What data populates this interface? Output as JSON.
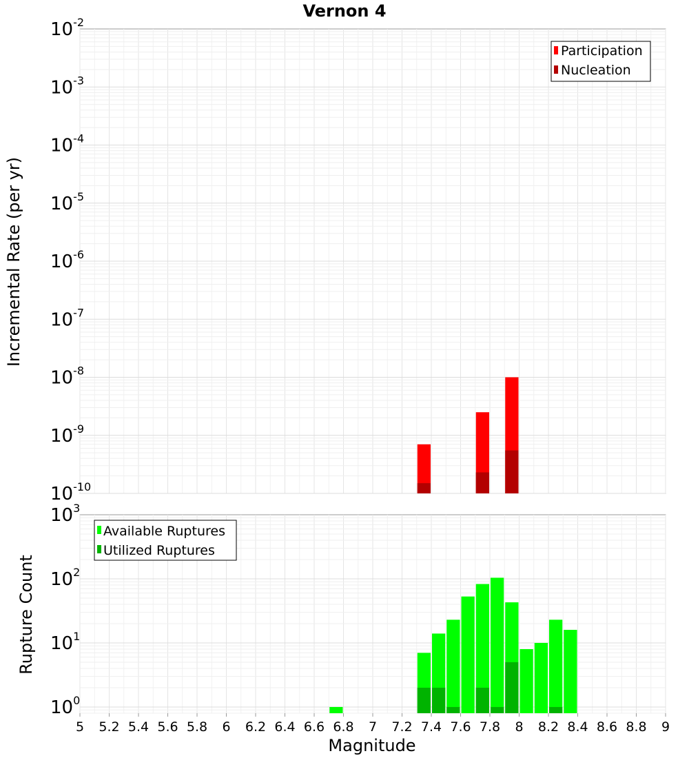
{
  "chart_data": [
    {
      "type": "bar",
      "title": "Vernon 4",
      "xlabel": "",
      "ylabel": "Incremental Rate (per yr)",
      "y_scale": "log",
      "xlim": [
        5,
        9
      ],
      "ylim": [
        1e-10,
        0.01
      ],
      "y_tick_exponents": [
        "-2",
        "-3",
        "-4",
        "-5",
        "-6",
        "-7",
        "-8",
        "-9",
        "-10"
      ],
      "grid": true,
      "legend_position": "top-right",
      "bar_width": 0.1,
      "series": [
        {
          "name": "Participation",
          "color": "#ff0000",
          "x": [
            7.35,
            7.75,
            7.95
          ],
          "values": [
            7e-10,
            2.5e-09,
            1e-08
          ]
        },
        {
          "name": "Nucleation",
          "color": "#b30000",
          "x": [
            7.35,
            7.75,
            7.95
          ],
          "values": [
            1.5e-10,
            2.3e-10,
            5.5e-10
          ]
        }
      ]
    },
    {
      "type": "bar",
      "title": "",
      "xlabel": "Magnitude",
      "ylabel": "Rupture Count",
      "y_scale": "log",
      "xlim": [
        5,
        9
      ],
      "ylim": [
        0.8,
        1000
      ],
      "y_tick_exponents": [
        "3",
        "2",
        "1",
        "0"
      ],
      "x_ticks": [
        "5",
        "5.2",
        "5.4",
        "5.6",
        "5.8",
        "6",
        "6.2",
        "6.4",
        "6.6",
        "6.8",
        "7",
        "7.2",
        "7.4",
        "7.6",
        "7.8",
        "8",
        "8.2",
        "8.4",
        "8.6",
        "8.8",
        "9"
      ],
      "grid": true,
      "legend_position": "top-left",
      "bar_width": 0.1,
      "series": [
        {
          "name": "Available Ruptures",
          "color": "#00ff00",
          "x": [
            6.75,
            7.35,
            7.45,
            7.55,
            7.65,
            7.75,
            7.85,
            7.95,
            8.05,
            8.15,
            8.25,
            8.35
          ],
          "values": [
            1,
            7,
            14,
            23,
            53,
            83,
            104,
            43,
            8,
            10,
            23,
            16
          ]
        },
        {
          "name": "Utilized Ruptures",
          "color": "#00b300",
          "x": [
            7.35,
            7.45,
            7.55,
            7.75,
            7.85,
            7.95,
            8.25
          ],
          "values": [
            2,
            2,
            1,
            2,
            1,
            5,
            1
          ]
        }
      ]
    }
  ]
}
